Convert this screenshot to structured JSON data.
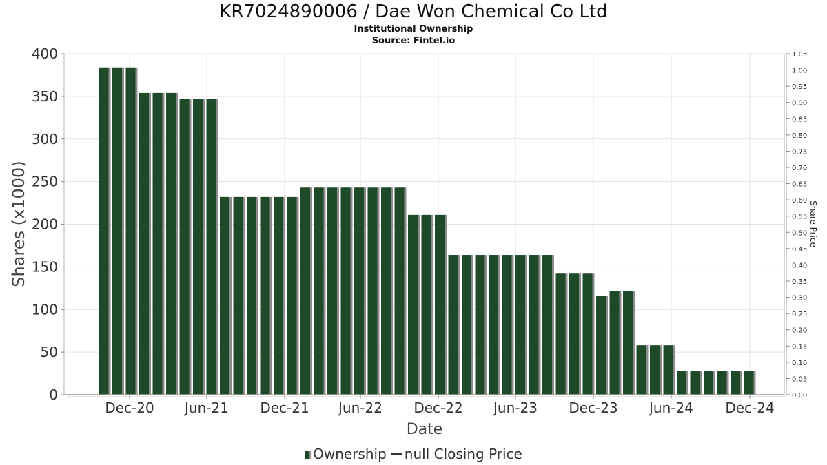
{
  "title": "KR7024890006 / Dae Won Chemical Co Ltd",
  "subtitle1": "Institutional Ownership",
  "subtitle2": "Source: Fintel.io",
  "legend": {
    "ownership_label": "Ownership",
    "price_label": "null Closing Price"
  },
  "colors": {
    "bar": "#1e4a2a",
    "bar_shadow": "#8c8c8c",
    "grid": "#e2e2e2",
    "axis": "#888888"
  },
  "chart_data": {
    "type": "bar",
    "xlabel": "Date",
    "ylabel": "Shares (x1000)",
    "y2label": "Share Price",
    "ylim": [
      0,
      400
    ],
    "yticks": [
      0,
      50,
      100,
      150,
      200,
      250,
      300,
      350,
      400
    ],
    "y2lim": [
      0,
      1.05
    ],
    "y2ticks": [
      "0.00",
      "0.05",
      "0.10",
      "0.15",
      "0.20",
      "0.25",
      "0.30",
      "0.35",
      "0.40",
      "0.45",
      "0.50",
      "0.55",
      "0.60",
      "0.65",
      "0.70",
      "0.75",
      "0.80",
      "0.85",
      "0.90",
      "0.95",
      "1.00",
      "1.05"
    ],
    "xticks": [
      "Dec-20",
      "Jun-21",
      "Dec-21",
      "Jun-22",
      "Dec-22",
      "Jun-23",
      "Dec-23",
      "Jun-24",
      "Dec-24"
    ],
    "grid": true,
    "legend_position": "bottom",
    "series": [
      {
        "name": "Ownership",
        "values": [
          384,
          384,
          384,
          354,
          354,
          354,
          347,
          347,
          347,
          232,
          232,
          232,
          232,
          232,
          232,
          243,
          243,
          243,
          243,
          243,
          243,
          243,
          243,
          211,
          211,
          211,
          164,
          164,
          164,
          164,
          164,
          164,
          164,
          164,
          142,
          142,
          142,
          116,
          122,
          122,
          58,
          58,
          58,
          28,
          28,
          28,
          28,
          28,
          28
        ]
      }
    ]
  }
}
